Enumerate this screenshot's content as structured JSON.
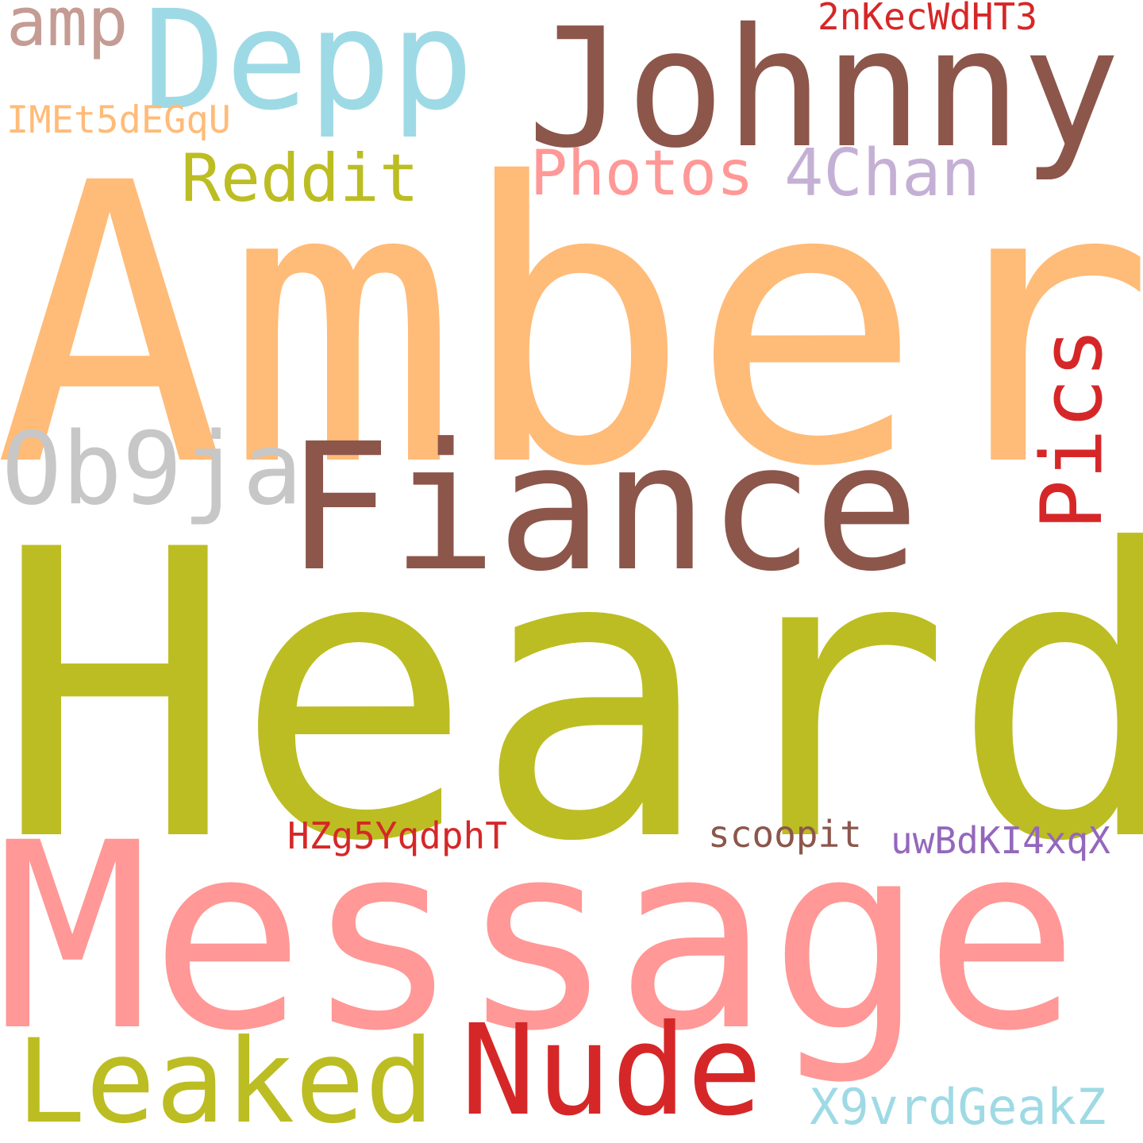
{
  "words": {
    "amber": {
      "text": "Amber",
      "color": "#ffbb78"
    },
    "heard": {
      "text": "Heard",
      "color": "#bcbd22"
    },
    "message": {
      "text": "Message",
      "color": "#ff9896"
    },
    "johnny": {
      "text": "Johnny",
      "color": "#8c564b"
    },
    "fiance": {
      "text": "Fiance",
      "color": "#8c564b"
    },
    "depp": {
      "text": "Depp",
      "color": "#9edae5"
    },
    "nude": {
      "text": "Nude",
      "color": "#d62728"
    },
    "leaked": {
      "text": "Leaked",
      "color": "#bcbd22"
    },
    "ob9ja": {
      "text": "Ob9ja",
      "color": "#c7c7c7"
    },
    "pics": {
      "text": "Pics",
      "color": "#d62728"
    },
    "reddit": {
      "text": "Reddit",
      "color": "#bcbd22"
    },
    "photos": {
      "text": "Photos",
      "color": "#ff9896"
    },
    "fourchan": {
      "text": "4Chan",
      "color": "#c5b0d5"
    },
    "amp": {
      "text": "amp",
      "color": "#c49c94"
    },
    "x9vrd": {
      "text": "X9vrdGeakZ",
      "color": "#9edae5"
    },
    "imet": {
      "text": "IMEt5dEGqU",
      "color": "#ffbb78"
    },
    "twonkec": {
      "text": "2nKecWdHT3",
      "color": "#d62728"
    },
    "hzg5": {
      "text": "HZg5YqdphT",
      "color": "#d62728"
    },
    "scoopit": {
      "text": "scoopit",
      "color": "#8c564b"
    },
    "uwbd": {
      "text": "uwBdKI4xqX",
      "color": "#9467bd"
    }
  }
}
